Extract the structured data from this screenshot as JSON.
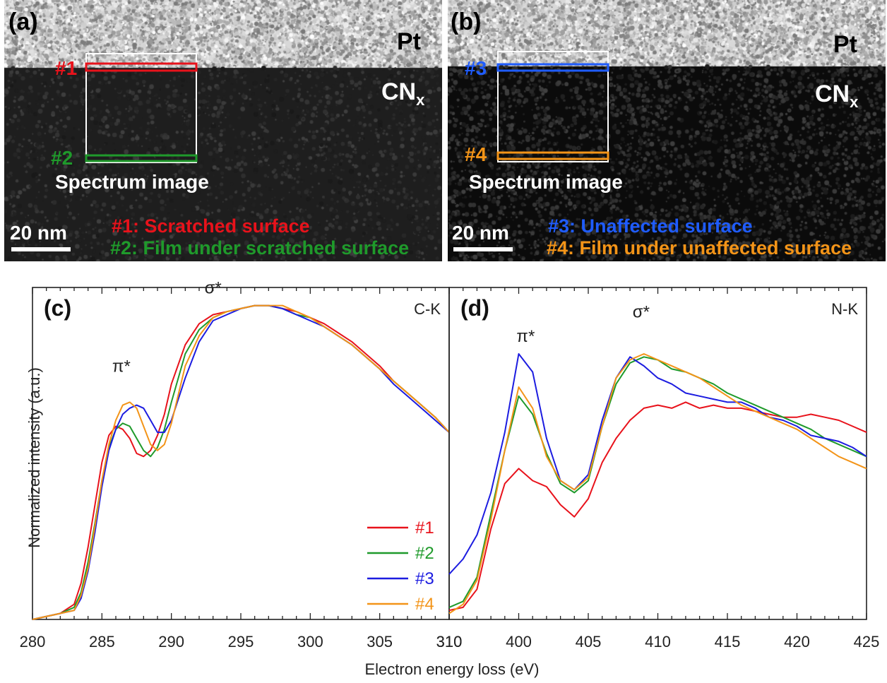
{
  "panel_a": {
    "letter": "(a)",
    "top_material": "Pt",
    "film_material": "CN",
    "film_subscript": "x",
    "marker_1": "#1",
    "marker_2": "#2",
    "box_label": "Spectrum image",
    "scale_bar": "20 nm",
    "legend_1": "#1: Scratched surface",
    "legend_2": "#2: Film under scratched surface",
    "colors": {
      "1": "#e8121b",
      "2": "#1f9a2b",
      "box": "#ffffff"
    }
  },
  "panel_b": {
    "letter": "(b)",
    "top_material": "Pt",
    "film_material": "CN",
    "film_subscript": "x",
    "marker_3": "#3",
    "marker_4": "#4",
    "box_label": "Spectrum image",
    "scale_bar": "20 nm",
    "legend_3": "#3: Unaffected surface",
    "legend_4": "#4: Film under unaffected surface",
    "colors": {
      "3": "#1f5cff",
      "4": "#f39418",
      "box": "#ffffff"
    }
  },
  "chart_data": [
    {
      "type": "line",
      "panel": "(c)",
      "edge_label": "C-K",
      "xlabel": "Electron energy loss (eV)",
      "ylabel": "Normalized intensity (a.u.)",
      "xlim": [
        280,
        310
      ],
      "xticks": [
        280,
        285,
        290,
        295,
        300,
        305,
        310
      ],
      "ylim": [
        0,
        1.1
      ],
      "grid": false,
      "legend_position": "bottom-right",
      "annotations": [
        {
          "text": "π*",
          "x": 286.4,
          "y": 0.82
        },
        {
          "text": "σ*",
          "x": 293.0,
          "y": 1.08
        }
      ],
      "series": [
        {
          "name": "#1",
          "color": "#e8121b",
          "x": [
            280,
            282,
            283,
            283.5,
            284,
            284.5,
            285,
            285.5,
            286,
            286.5,
            287,
            287.5,
            288,
            288.5,
            289,
            289.5,
            290,
            291,
            292,
            293,
            294,
            295,
            296,
            297,
            298,
            299,
            300,
            301,
            302,
            303,
            304,
            305,
            306,
            307,
            308,
            309,
            310
          ],
          "y": [
            0.0,
            0.02,
            0.05,
            0.12,
            0.24,
            0.38,
            0.52,
            0.61,
            0.64,
            0.63,
            0.6,
            0.55,
            0.54,
            0.56,
            0.61,
            0.68,
            0.78,
            0.91,
            0.98,
            1.01,
            1.02,
            1.03,
            1.04,
            1.04,
            1.03,
            1.02,
            1.0,
            0.98,
            0.95,
            0.92,
            0.88,
            0.84,
            0.79,
            0.75,
            0.71,
            0.67,
            0.62
          ]
        },
        {
          "name": "#2",
          "color": "#1f9a2b",
          "x": [
            280,
            282,
            283,
            283.5,
            284,
            284.5,
            285,
            285.5,
            286,
            286.5,
            287,
            287.5,
            288,
            288.5,
            289,
            289.5,
            290,
            291,
            292,
            293,
            294,
            295,
            296,
            297,
            298,
            299,
            300,
            301,
            302,
            303,
            304,
            305,
            306,
            307,
            308,
            309,
            310
          ],
          "y": [
            0.0,
            0.02,
            0.04,
            0.09,
            0.19,
            0.32,
            0.46,
            0.57,
            0.63,
            0.65,
            0.64,
            0.6,
            0.56,
            0.54,
            0.57,
            0.63,
            0.72,
            0.88,
            0.96,
            1.0,
            1.02,
            1.03,
            1.04,
            1.04,
            1.03,
            1.01,
            1.0,
            0.97,
            0.94,
            0.91,
            0.87,
            0.83,
            0.79,
            0.75,
            0.71,
            0.67,
            0.62
          ]
        },
        {
          "name": "#3",
          "color": "#1c1ce0",
          "x": [
            280,
            282,
            283,
            283.5,
            284,
            284.5,
            285,
            285.5,
            286,
            286.5,
            287,
            287.5,
            288,
            288.5,
            289,
            289.5,
            290,
            291,
            292,
            293,
            294,
            295,
            296,
            297,
            298,
            299,
            300,
            301,
            302,
            303,
            304,
            305,
            306,
            307,
            308,
            309,
            310
          ],
          "y": [
            0.0,
            0.02,
            0.03,
            0.07,
            0.16,
            0.29,
            0.44,
            0.56,
            0.63,
            0.68,
            0.7,
            0.71,
            0.7,
            0.66,
            0.62,
            0.62,
            0.66,
            0.8,
            0.92,
            0.99,
            1.01,
            1.03,
            1.04,
            1.04,
            1.03,
            1.01,
            0.99,
            0.97,
            0.94,
            0.91,
            0.87,
            0.83,
            0.78,
            0.74,
            0.7,
            0.66,
            0.62
          ]
        },
        {
          "name": "#4",
          "color": "#f39418",
          "x": [
            280,
            282,
            283,
            283.5,
            284,
            284.5,
            285,
            285.5,
            286,
            286.5,
            287,
            287.5,
            288,
            288.5,
            289,
            289.5,
            290,
            291,
            292,
            293,
            294,
            295,
            296,
            297,
            298,
            299,
            300,
            301,
            302,
            303,
            304,
            305,
            306,
            307,
            308,
            309,
            310
          ],
          "y": [
            0.0,
            0.02,
            0.03,
            0.08,
            0.17,
            0.31,
            0.46,
            0.58,
            0.66,
            0.71,
            0.72,
            0.7,
            0.64,
            0.58,
            0.56,
            0.58,
            0.65,
            0.84,
            0.94,
            1.0,
            1.02,
            1.03,
            1.04,
            1.04,
            1.04,
            1.02,
            1.0,
            0.97,
            0.94,
            0.91,
            0.87,
            0.83,
            0.79,
            0.75,
            0.71,
            0.67,
            0.62
          ]
        }
      ]
    },
    {
      "type": "line",
      "panel": "(d)",
      "edge_label": "N-K",
      "xlabel": "Electron energy loss (eV)",
      "xlim": [
        395,
        425
      ],
      "xticks": [
        400,
        405,
        410,
        415,
        420,
        425
      ],
      "extra_first_tick_label": "310",
      "ylim": [
        0,
        1.1
      ],
      "grid": false,
      "annotations": [
        {
          "text": "π*",
          "x": 400.5,
          "y": 0.92
        },
        {
          "text": "σ*",
          "x": 408.8,
          "y": 1.0
        }
      ],
      "series": [
        {
          "name": "#1",
          "color": "#e8121b",
          "x": [
            395,
            396,
            397,
            398,
            399,
            400,
            401,
            402,
            403,
            404,
            405,
            406,
            407,
            408,
            409,
            410,
            411,
            412,
            413,
            414,
            415,
            416,
            417,
            418,
            419,
            420,
            421,
            422,
            423,
            424,
            425
          ],
          "y": [
            0.03,
            0.04,
            0.1,
            0.3,
            0.45,
            0.5,
            0.46,
            0.44,
            0.38,
            0.34,
            0.4,
            0.52,
            0.6,
            0.66,
            0.7,
            0.71,
            0.7,
            0.72,
            0.7,
            0.71,
            0.7,
            0.7,
            0.69,
            0.68,
            0.67,
            0.67,
            0.68,
            0.67,
            0.66,
            0.64,
            0.62
          ]
        },
        {
          "name": "#2",
          "color": "#1f9a2b",
          "x": [
            395,
            396,
            397,
            398,
            399,
            400,
            401,
            402,
            403,
            404,
            405,
            406,
            407,
            408,
            409,
            410,
            411,
            412,
            413,
            414,
            415,
            416,
            417,
            418,
            419,
            420,
            421,
            422,
            423,
            424,
            425
          ],
          "y": [
            0.04,
            0.06,
            0.14,
            0.35,
            0.56,
            0.74,
            0.68,
            0.55,
            0.45,
            0.42,
            0.46,
            0.64,
            0.78,
            0.85,
            0.87,
            0.86,
            0.83,
            0.82,
            0.8,
            0.78,
            0.75,
            0.73,
            0.71,
            0.69,
            0.67,
            0.65,
            0.63,
            0.6,
            0.58,
            0.56,
            0.54
          ]
        },
        {
          "name": "#3",
          "color": "#1c1ce0",
          "x": [
            395,
            396,
            397,
            398,
            399,
            400,
            401,
            402,
            403,
            404,
            405,
            406,
            407,
            408,
            409,
            410,
            411,
            412,
            413,
            414,
            415,
            416,
            417,
            418,
            419,
            420,
            421,
            422,
            423,
            424,
            425
          ],
          "y": [
            0.15,
            0.2,
            0.28,
            0.42,
            0.62,
            0.88,
            0.82,
            0.6,
            0.46,
            0.43,
            0.48,
            0.66,
            0.8,
            0.87,
            0.84,
            0.8,
            0.78,
            0.75,
            0.74,
            0.73,
            0.72,
            0.72,
            0.7,
            0.67,
            0.66,
            0.64,
            0.61,
            0.6,
            0.59,
            0.57,
            0.54
          ]
        },
        {
          "name": "#4",
          "color": "#f39418",
          "x": [
            395,
            396,
            397,
            398,
            399,
            400,
            401,
            402,
            403,
            404,
            405,
            406,
            407,
            408,
            409,
            410,
            411,
            412,
            413,
            414,
            415,
            416,
            417,
            418,
            419,
            420,
            421,
            422,
            423,
            424,
            425
          ],
          "y": [
            0.02,
            0.05,
            0.13,
            0.33,
            0.56,
            0.77,
            0.7,
            0.54,
            0.46,
            0.43,
            0.47,
            0.64,
            0.8,
            0.86,
            0.88,
            0.86,
            0.84,
            0.82,
            0.8,
            0.77,
            0.74,
            0.71,
            0.69,
            0.67,
            0.65,
            0.63,
            0.6,
            0.57,
            0.54,
            0.52,
            0.5
          ]
        }
      ]
    }
  ]
}
